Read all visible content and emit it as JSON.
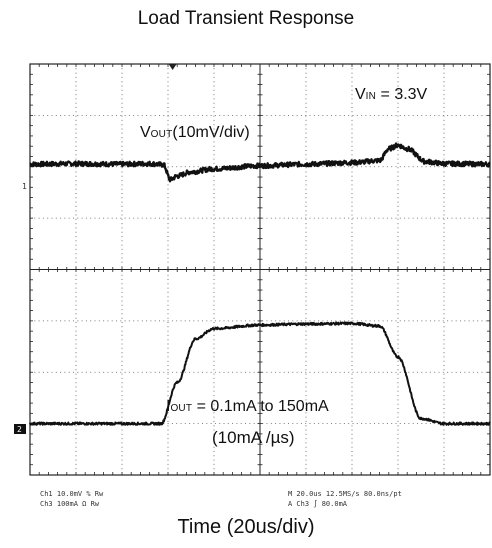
{
  "chart_data": {
    "type": "line",
    "title": "Load Transient Response",
    "xlabel": "Time (20us/div)",
    "ylabel": "",
    "x_divisions": 10,
    "y_divisions": 8,
    "grid": true,
    "annotations": {
      "vin": {
        "main": "V",
        "sub": "IN",
        "rest": " = 3.3V"
      },
      "vout": {
        "main": "V",
        "sub": "OUT",
        "rest": "(10mV/div)"
      },
      "iout": {
        "main": "I",
        "sub": "OUT",
        "rest": " = 0.1mA to 150mA"
      },
      "rate": "(10mA /µs)"
    },
    "channel_markers": {
      "ch1": "1",
      "ch2": "2"
    },
    "series": [
      {
        "channel": "ch1",
        "x": [
          0,
          1.0,
          2.0,
          2.6,
          2.9,
          3.05,
          3.2,
          3.5,
          4.0,
          5.0,
          6.0,
          7.0,
          7.6,
          7.8,
          8.0,
          8.2,
          8.6,
          9.0,
          10.0
        ],
        "y": [
          2.05,
          2.06,
          2.05,
          2.06,
          2.04,
          1.75,
          1.82,
          1.9,
          1.96,
          2.02,
          2.05,
          2.08,
          2.12,
          2.35,
          2.42,
          2.35,
          2.1,
          2.06,
          2.05
        ]
      },
      {
        "channel": "ch2",
        "x": [
          0,
          1.0,
          2.0,
          2.85,
          3.2,
          3.6,
          4.0,
          5.0,
          6.0,
          7.0,
          7.6,
          8.0,
          8.5,
          9.0,
          10.0
        ],
        "y": [
          -3.0,
          -3.0,
          -3.0,
          -3.0,
          -2.2,
          -1.35,
          -1.15,
          -1.08,
          -1.06,
          -1.05,
          -1.1,
          -1.7,
          -2.9,
          -3.0,
          -3.0
        ]
      }
    ]
  },
  "footer": {
    "left_line1": "Ch1     10.0mV  %  Rw",
    "left_line2": "Ch3     100mA   Ω  Rw",
    "right_line1": "M 20.0us 12.5MS/s    80.0ns/pt",
    "right_line2": "A  Ch3  ∫  80.0mA"
  }
}
